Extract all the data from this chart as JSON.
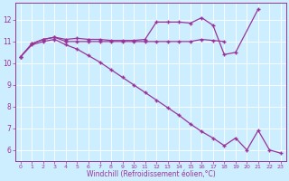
{
  "xlabel": "Windchill (Refroidissement éolien,°C)",
  "bg_color": "#cceeff",
  "line_color": "#993399",
  "marker": "+",
  "xlim": [
    -0.5,
    23.5
  ],
  "ylim": [
    5.5,
    12.8
  ],
  "xticks": [
    0,
    1,
    2,
    3,
    4,
    5,
    6,
    7,
    8,
    9,
    10,
    11,
    12,
    13,
    14,
    15,
    16,
    17,
    18,
    19,
    20,
    21,
    22,
    23
  ],
  "yticks": [
    6,
    7,
    8,
    9,
    10,
    11,
    12
  ],
  "series_upper": {
    "x": [
      0,
      1,
      2,
      3,
      4,
      5,
      6,
      7,
      8,
      9,
      10,
      11,
      12,
      13,
      14,
      15,
      16,
      17,
      18,
      19,
      21
    ],
    "y": [
      10.3,
      10.9,
      11.1,
      11.2,
      11.1,
      11.15,
      11.1,
      11.1,
      11.05,
      11.05,
      11.05,
      11.1,
      11.9,
      11.9,
      11.9,
      11.85,
      12.1,
      11.75,
      10.4,
      10.5,
      12.5
    ]
  },
  "series_mid": {
    "x": [
      0,
      1,
      2,
      3,
      4,
      5,
      6,
      7,
      8,
      9,
      10,
      11,
      12,
      13,
      14,
      15,
      16,
      17,
      18
    ],
    "y": [
      10.3,
      10.9,
      11.1,
      11.2,
      11.0,
      11.0,
      11.0,
      11.0,
      11.0,
      11.0,
      11.0,
      11.0,
      11.0,
      11.0,
      11.0,
      11.0,
      11.1,
      11.05,
      11.0
    ]
  },
  "series_diag": {
    "x": [
      0,
      1,
      2,
      3,
      4,
      5,
      6,
      7,
      8,
      9,
      10,
      11,
      12,
      13,
      14,
      15,
      16,
      17,
      18,
      19,
      20,
      21,
      22,
      23
    ],
    "y": [
      10.3,
      10.85,
      11.0,
      11.1,
      10.85,
      10.65,
      10.35,
      10.05,
      9.7,
      9.35,
      9.0,
      8.65,
      8.3,
      7.95,
      7.6,
      7.2,
      6.85,
      6.55,
      6.2,
      6.55,
      6.0,
      6.9,
      6.0,
      5.85
    ]
  }
}
